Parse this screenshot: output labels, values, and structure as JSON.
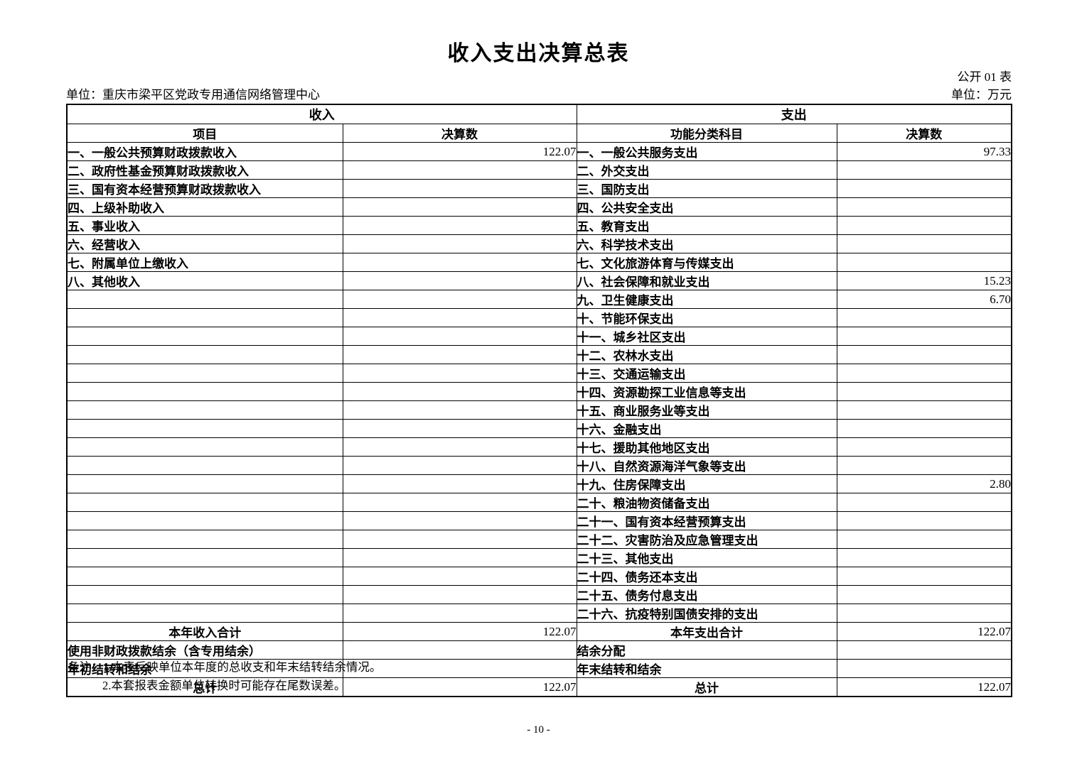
{
  "page": {
    "title": "收入支出决算总表",
    "form_no": "公开 01 表",
    "unit_name": "单位：重庆市梁平区党政专用通信网络管理中心",
    "unit_money": "单位：万元",
    "page_number": "- 10 -"
  },
  "table": {
    "income_header": "收入",
    "expense_header": "支出",
    "income_col_item": "项目",
    "income_col_value": "决算数",
    "expense_col_item": "功能分类科目",
    "expense_col_value": "决算数",
    "rows": [
      {
        "income": "一、一般公共预算财政拨款收入",
        "income_value": "122.07",
        "expense": "一、一般公共服务支出",
        "expense_value": "97.33"
      },
      {
        "income": "二、政府性基金预算财政拨款收入",
        "income_value": "",
        "expense": "二、外交支出",
        "expense_value": ""
      },
      {
        "income": "三、国有资本经营预算财政拨款收入",
        "income_value": "",
        "expense": "三、国防支出",
        "expense_value": ""
      },
      {
        "income": "四、上级补助收入",
        "income_value": "",
        "expense": "四、公共安全支出",
        "expense_value": ""
      },
      {
        "income": "五、事业收入",
        "income_value": "",
        "expense": "五、教育支出",
        "expense_value": ""
      },
      {
        "income": "六、经营收入",
        "income_value": "",
        "expense": "六、科学技术支出",
        "expense_value": ""
      },
      {
        "income": "七、附属单位上缴收入",
        "income_value": "",
        "expense": "七、文化旅游体育与传媒支出",
        "expense_value": ""
      },
      {
        "income": "八、其他收入",
        "income_value": "",
        "expense": "八、社会保障和就业支出",
        "expense_value": "15.23"
      },
      {
        "income": "",
        "income_value": "",
        "expense": "九、卫生健康支出",
        "expense_value": "6.70"
      },
      {
        "income": "",
        "income_value": "",
        "expense": "十、节能环保支出",
        "expense_value": ""
      },
      {
        "income": "",
        "income_value": "",
        "expense": "十一、城乡社区支出",
        "expense_value": ""
      },
      {
        "income": "",
        "income_value": "",
        "expense": "十二、农林水支出",
        "expense_value": ""
      },
      {
        "income": "",
        "income_value": "",
        "expense": "十三、交通运输支出",
        "expense_value": ""
      },
      {
        "income": "",
        "income_value": "",
        "expense": "十四、资源勘探工业信息等支出",
        "expense_value": ""
      },
      {
        "income": "",
        "income_value": "",
        "expense": "十五、商业服务业等支出",
        "expense_value": ""
      },
      {
        "income": "",
        "income_value": "",
        "expense": "十六、金融支出",
        "expense_value": ""
      },
      {
        "income": "",
        "income_value": "",
        "expense": "十七、援助其他地区支出",
        "expense_value": ""
      },
      {
        "income": "",
        "income_value": "",
        "expense": "十八、自然资源海洋气象等支出",
        "expense_value": ""
      },
      {
        "income": "",
        "income_value": "",
        "expense": "十九、住房保障支出",
        "expense_value": "2.80"
      },
      {
        "income": "",
        "income_value": "",
        "expense": "二十、粮油物资储备支出",
        "expense_value": ""
      },
      {
        "income": "",
        "income_value": "",
        "expense": "二十一、国有资本经营预算支出",
        "expense_value": ""
      },
      {
        "income": "",
        "income_value": "",
        "expense": "二十二、灾害防治及应急管理支出",
        "expense_value": ""
      },
      {
        "income": "",
        "income_value": "",
        "expense": "二十三、其他支出",
        "expense_value": ""
      },
      {
        "income": "",
        "income_value": "",
        "expense": "二十四、债务还本支出",
        "expense_value": ""
      },
      {
        "income": "",
        "income_value": "",
        "expense": "二十五、债务付息支出",
        "expense_value": ""
      },
      {
        "income": "",
        "income_value": "",
        "expense": "二十六、抗疫特别国债安排的支出",
        "expense_value": ""
      },
      {
        "income": "本年收入合计",
        "income_value": "122.07",
        "expense": "本年支出合计",
        "expense_value": "122.07",
        "income_center": true,
        "expense_center": true
      },
      {
        "income": "使用非财政拨款结余（含专用结余）",
        "income_value": "",
        "expense": "结余分配",
        "expense_value": ""
      },
      {
        "income": "年初结转和结余",
        "income_value": "",
        "expense": "年末结转和结余",
        "expense_value": ""
      },
      {
        "income": "总计",
        "income_value": "122.07",
        "expense": "总计",
        "expense_value": "122.07",
        "income_center": true,
        "expense_center": true
      }
    ]
  },
  "notes": {
    "label": "备注：",
    "lines": [
      "1.本表反映单位本年度的总收支和年末结转结余情况。",
      "2.本套报表金额单位转换时可能存在尾数误差。"
    ]
  }
}
